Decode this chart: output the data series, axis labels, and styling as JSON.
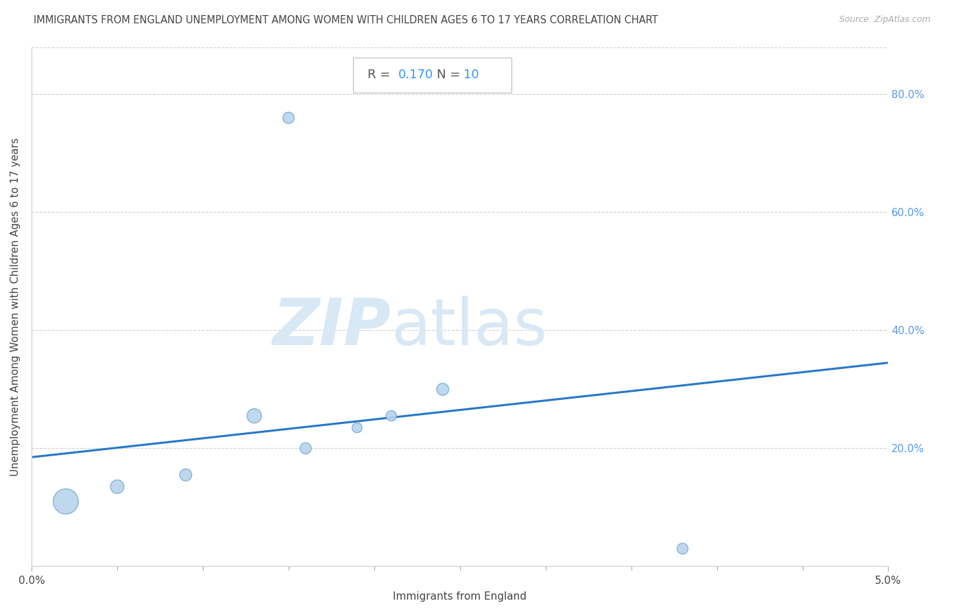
{
  "title": "IMMIGRANTS FROM ENGLAND UNEMPLOYMENT AMONG WOMEN WITH CHILDREN AGES 6 TO 17 YEARS CORRELATION CHART",
  "source": "Source: ZipAtlas.com",
  "xlabel": "Immigrants from England",
  "ylabel": "Unemployment Among Women with Children Ages 6 to 17 years",
  "R": 0.17,
  "N": 10,
  "xlim": [
    0.0,
    0.05
  ],
  "ylim": [
    0.0,
    0.88
  ],
  "yticks": [
    0.0,
    0.2,
    0.4,
    0.6,
    0.8
  ],
  "ytick_labels": [
    "",
    "20.0%",
    "40.0%",
    "60.0%",
    "80.0%"
  ],
  "scatter_x": [
    0.002,
    0.005,
    0.009,
    0.013,
    0.016,
    0.021,
    0.024,
    0.038,
    0.015,
    0.019
  ],
  "scatter_y": [
    0.11,
    0.135,
    0.155,
    0.255,
    0.2,
    0.255,
    0.3,
    0.03,
    0.76,
    0.235
  ],
  "scatter_sizes": [
    700,
    200,
    160,
    230,
    140,
    120,
    160,
    130,
    140,
    110
  ],
  "scatter_color": "#b8d4ed",
  "scatter_edge_color": "#7aafd4",
  "line_color": "#2878c8",
  "line_x0": 0.0,
  "line_y0": 0.185,
  "line_x1": 0.05,
  "line_y1": 0.345,
  "grid_color": "#d0d0d0",
  "background_color": "#ffffff",
  "text_color": "#444444",
  "watermark_zip": "ZIP",
  "watermark_atlas": "atlas",
  "watermark_color": "#d8e8f5",
  "annotation_box_color": "#ffffff",
  "annotation_border_color": "#bbbbbb",
  "annotation_r_color": "#555555",
  "annotation_n_color": "#3399ff",
  "title_fontsize": 10.5,
  "axis_label_fontsize": 11,
  "tick_fontsize": 11,
  "annotation_fontsize": 13,
  "right_ytick_color": "#5599ee",
  "source_color": "#aaaaaa"
}
